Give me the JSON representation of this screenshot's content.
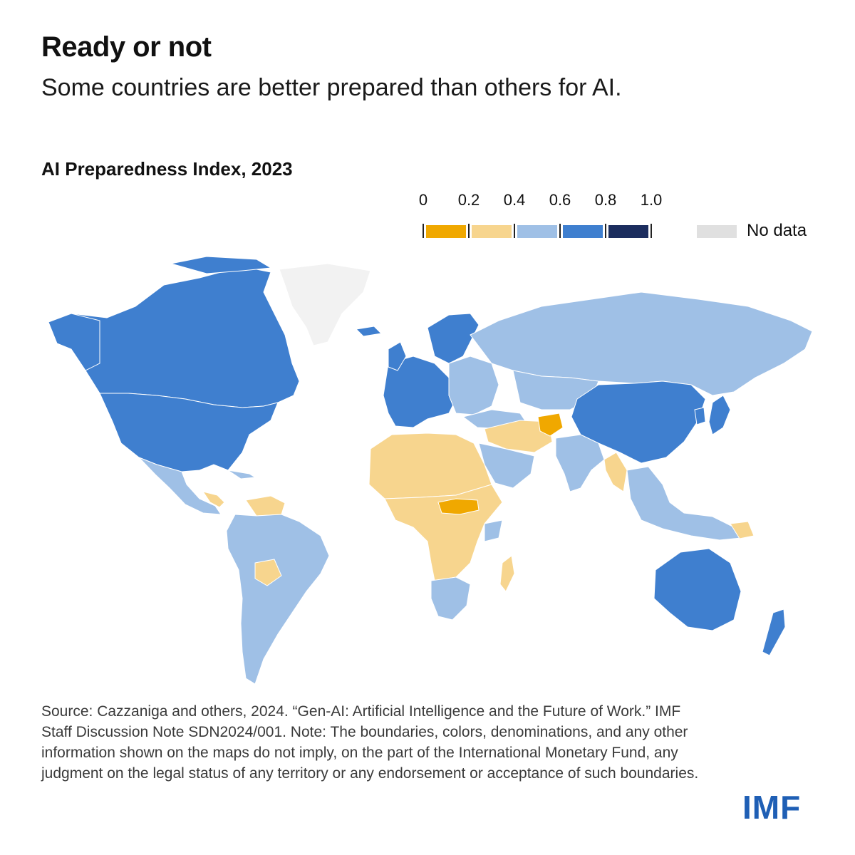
{
  "header": {
    "title": "Ready or not",
    "subtitle": "Some countries are better prepared than others for AI."
  },
  "chart": {
    "title": "AI Preparedness Index, 2023"
  },
  "legend": {
    "ticks": [
      "0",
      "0.2",
      "0.4",
      "0.6",
      "0.8",
      "1.0"
    ],
    "bins": [
      {
        "range": [
          0,
          0.2
        ],
        "color": "#f0a800"
      },
      {
        "range": [
          0.2,
          0.4
        ],
        "color": "#f7d58e"
      },
      {
        "range": [
          0.4,
          0.6
        ],
        "color": "#9fc0e6"
      },
      {
        "range": [
          0.6,
          0.8
        ],
        "color": "#3f7fcf"
      },
      {
        "range": [
          0.8,
          1.0
        ],
        "color": "#1b2d5e"
      }
    ],
    "no_data_label": "No data",
    "no_data_color": "#e0e0e0"
  },
  "map_colors": {
    "ocean": "#ffffff",
    "greenland": "#f2f2f2",
    "border": "#ffffff"
  },
  "source": {
    "text": "Source: Cazzaniga and others, 2024. “Gen-AI: Artificial Intelligence and the Future of Work.” IMF Staff Discussion Note SDN2024/001. Note: The boundaries, colors, denominations, and any other information shown on the maps do not imply, on the part of the International Monetary Fund, any judgment on the legal status of any territory or any endorsement or acceptance of such boundaries."
  },
  "logo": {
    "text": "IMF"
  }
}
